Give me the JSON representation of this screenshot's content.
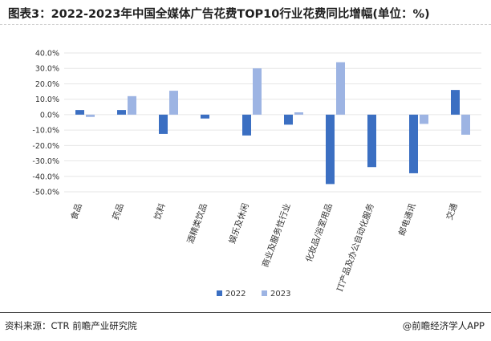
{
  "title": "图表3：2022-2023年中国全媒体广告花费TOP10行业花费同比增幅(单位：%)",
  "source": "资料来源：CTR 前瞻产业研究院",
  "brand": "@前瞻经济学人APP",
  "colors": {
    "series_2022": "#3b6fc2",
    "series_2023": "#9db4e3",
    "gridline": "#e6e6e6",
    "axis_text": "#333333"
  },
  "chart_data": {
    "type": "bar",
    "title": "图表3：2022-2023年中国全媒体广告花费TOP10行业花费同比增幅(单位：%)",
    "xlabel": "",
    "ylabel": "",
    "ylim": [
      -50,
      40
    ],
    "ytick_step": 10,
    "ytick_format": "percent_1dp",
    "grid": true,
    "legend": "bottom-center",
    "categories": [
      "食品",
      "药品",
      "饮料",
      "酒精类饮品",
      "娱乐及休闲",
      "商业及服务性行业",
      "化妆品/浴室用品",
      "IT产品及办公自动化服务",
      "邮电通讯",
      "交通"
    ],
    "series": [
      {
        "name": "2022",
        "values": [
          3.0,
          3.0,
          -12.5,
          -2.5,
          -13.5,
          -6.5,
          -45.0,
          -34.0,
          -38.0,
          16.0
        ]
      },
      {
        "name": "2023",
        "values": [
          -1.5,
          12.0,
          15.5,
          0.0,
          30.0,
          1.5,
          34.0,
          0.0,
          -6.0,
          -13.0
        ]
      }
    ]
  }
}
